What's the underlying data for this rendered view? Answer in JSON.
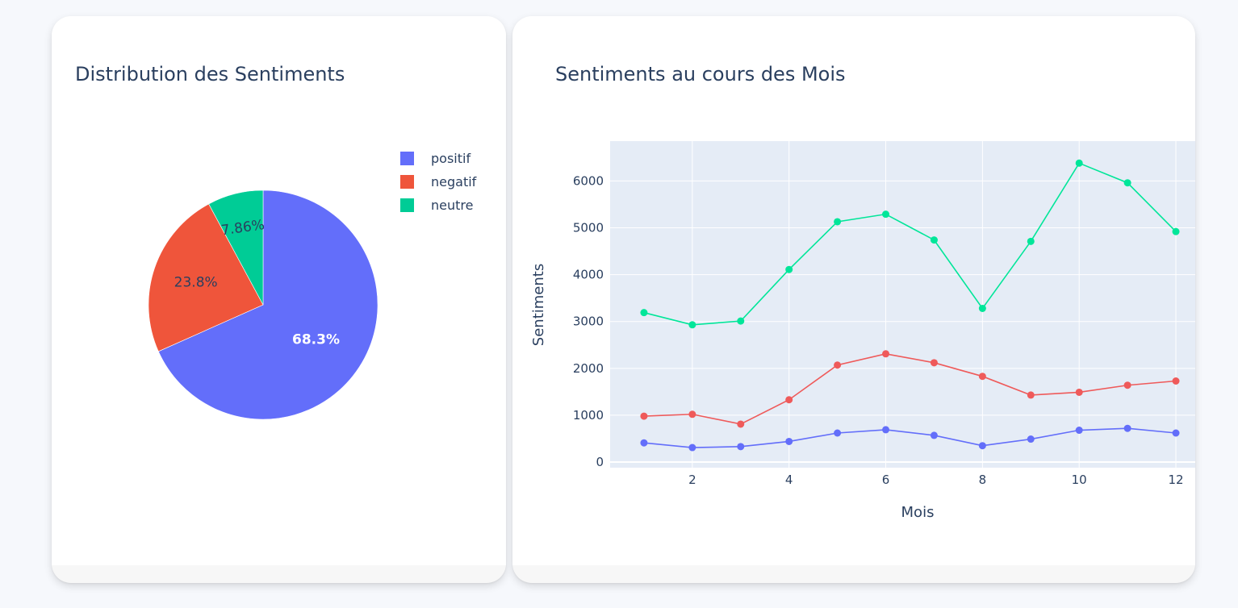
{
  "colors": {
    "positif": "#636efa",
    "negatif": "#ef553b",
    "neutre": "#00cc96",
    "grid_bg": "#e5ecf6",
    "text": "#2a3f5f"
  },
  "chart_data": [
    {
      "type": "pie",
      "title": "Distribution des Sentiments",
      "labels": [
        "positif",
        "negatif",
        "neutre"
      ],
      "values": [
        68.3,
        23.8,
        7.86
      ],
      "text_labels": [
        "68.3%",
        "23.8%",
        "7.86%"
      ],
      "colors": [
        "#636efa",
        "#ef553b",
        "#00cc96"
      ],
      "legend": "top-right"
    },
    {
      "type": "line",
      "title": "Sentiments au cours des Mois",
      "xlabel": "Mois",
      "ylabel": "Sentiments",
      "x": [
        1,
        2,
        3,
        4,
        5,
        6,
        7,
        8,
        9,
        10,
        11,
        12
      ],
      "xticks": [
        2,
        4,
        6,
        8,
        10,
        12
      ],
      "xlim": [
        0.3,
        12.4
      ],
      "yticks": [
        0,
        1000,
        2000,
        3000,
        4000,
        5000,
        6000
      ],
      "ylim": [
        -120,
        6850
      ],
      "grid": true,
      "series": [
        {
          "color": "#00e699",
          "values": [
            3190,
            2930,
            3010,
            4110,
            5130,
            5290,
            4740,
            3280,
            4710,
            6380,
            5960,
            4920
          ]
        },
        {
          "color": "#ef5a5a",
          "values": [
            980,
            1020,
            810,
            1330,
            2070,
            2310,
            2120,
            1830,
            1430,
            1490,
            1640,
            1730
          ]
        },
        {
          "color": "#636efa",
          "values": [
            410,
            310,
            330,
            440,
            620,
            690,
            570,
            350,
            490,
            680,
            720,
            620
          ]
        }
      ]
    }
  ]
}
